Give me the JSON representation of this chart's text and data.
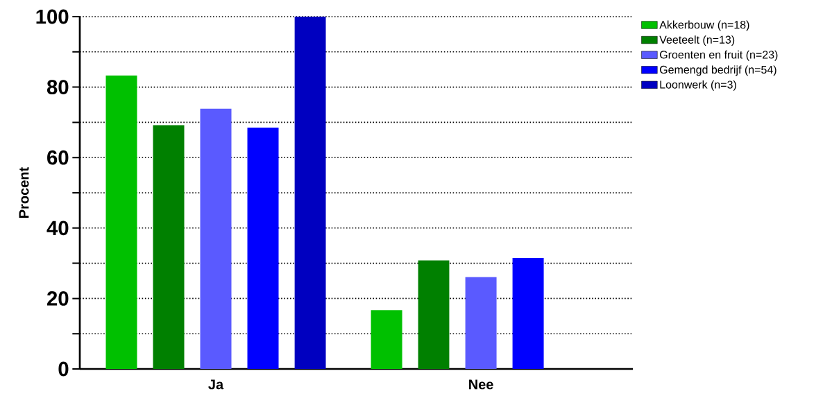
{
  "chart_data": {
    "type": "bar",
    "ylabel": "Procent",
    "categories": [
      "Ja",
      "Nee"
    ],
    "series": [
      {
        "name": "Akkerbouw (n=18)",
        "color": "#00c000",
        "values": [
          83.3,
          16.7
        ]
      },
      {
        "name": "Veeteelt (n=13)",
        "color": "#008000",
        "values": [
          69.2,
          30.8
        ]
      },
      {
        "name": "Groenten en fruit (n=23)",
        "color": "#5a5aff",
        "values": [
          73.9,
          26.1
        ]
      },
      {
        "name": "Gemengd bedrijf (n=54)",
        "color": "#0000ff",
        "values": [
          68.5,
          31.5
        ]
      },
      {
        "name": "Loonwerk (n=3)",
        "color": "#0000c0",
        "values": [
          100,
          0
        ]
      }
    ],
    "ylim": [
      0,
      100
    ],
    "yticks": [
      0,
      {
        "value": 10,
        "label": null
      },
      20,
      {
        "value": 30,
        "label": null
      },
      40,
      {
        "value": 50,
        "label": null
      },
      60,
      {
        "value": 70,
        "label": null
      },
      80,
      {
        "value": 90,
        "label": null
      },
      100
    ],
    "grid": "y",
    "legend": "top right"
  }
}
